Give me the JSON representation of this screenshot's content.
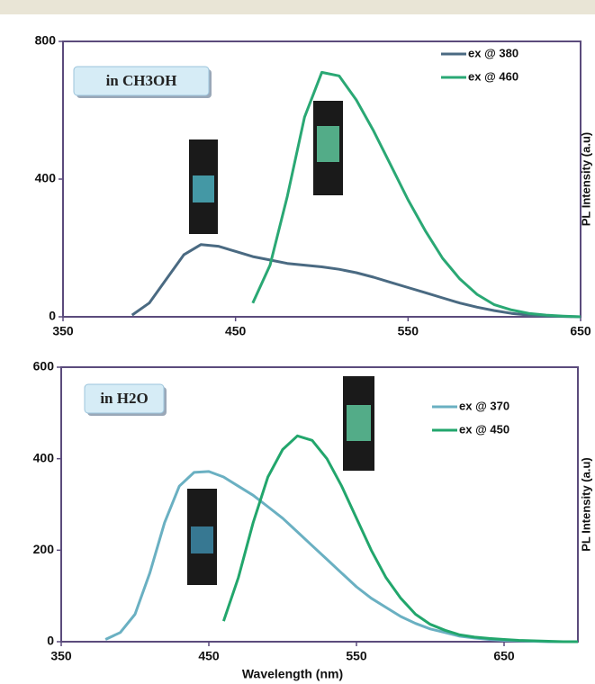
{
  "chart_data": [
    {
      "type": "line",
      "annotation": "in CH3OH",
      "ylabel": "PL Intensity (a.u)",
      "xlim": [
        350,
        650
      ],
      "xticks": [
        350,
        450,
        550,
        650
      ],
      "ylim": [
        0,
        800
      ],
      "yticks": [
        0,
        400,
        800
      ],
      "legend": "upper right",
      "x": [
        390,
        400,
        410,
        420,
        430,
        440,
        450,
        460,
        470,
        480,
        490,
        500,
        510,
        520,
        530,
        540,
        550,
        560,
        570,
        580,
        590,
        600,
        610,
        620,
        630,
        640,
        650
      ],
      "series": [
        {
          "name": "ex @ 380",
          "color": "#4a6a82",
          "values": [
            5,
            40,
            110,
            180,
            210,
            205,
            190,
            175,
            165,
            155,
            150,
            145,
            138,
            128,
            115,
            100,
            85,
            70,
            55,
            40,
            28,
            18,
            10,
            5,
            2,
            1,
            0
          ]
        },
        {
          "name": "ex @ 460",
          "color": "#2aa874",
          "values": [
            null,
            null,
            null,
            null,
            null,
            null,
            null,
            40,
            150,
            350,
            580,
            710,
            700,
            630,
            540,
            440,
            340,
            250,
            170,
            110,
            65,
            35,
            20,
            10,
            5,
            2,
            0
          ]
        }
      ]
    },
    {
      "type": "line",
      "annotation": "in H2O",
      "ylabel": "PL Intensity (a.u)",
      "xlabel": "Wavelength (nm)",
      "xlim": [
        350,
        700
      ],
      "xticks": [
        350,
        450,
        550,
        650
      ],
      "ylim": [
        0,
        600
      ],
      "yticks": [
        0,
        200,
        400,
        600
      ],
      "legend": "upper right",
      "x": [
        380,
        390,
        400,
        410,
        420,
        430,
        440,
        450,
        460,
        470,
        480,
        490,
        500,
        510,
        520,
        530,
        540,
        550,
        560,
        570,
        580,
        590,
        600,
        610,
        620,
        630,
        640,
        650,
        660,
        670,
        680,
        690,
        700
      ],
      "series": [
        {
          "name": "ex @ 370",
          "color": "#6ab0c2",
          "values": [
            5,
            20,
            60,
            150,
            260,
            340,
            370,
            372,
            360,
            340,
            320,
            295,
            270,
            240,
            210,
            180,
            150,
            120,
            95,
            75,
            55,
            40,
            28,
            20,
            12,
            8,
            5,
            3,
            2,
            1,
            0,
            0,
            0
          ]
        },
        {
          "name": "ex @ 450",
          "color": "#22a66c",
          "values": [
            null,
            null,
            null,
            null,
            null,
            null,
            null,
            null,
            45,
            140,
            260,
            360,
            420,
            450,
            440,
            400,
            340,
            270,
            200,
            140,
            95,
            60,
            38,
            25,
            15,
            10,
            7,
            5,
            3,
            2,
            1,
            0,
            0
          ]
        }
      ]
    }
  ]
}
